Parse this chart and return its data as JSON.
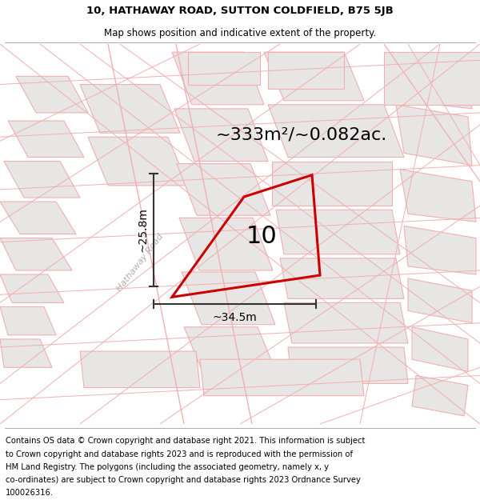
{
  "title_line1": "10, HATHAWAY ROAD, SUTTON COLDFIELD, B75 5JB",
  "title_line2": "Map shows position and indicative extent of the property.",
  "area_text": "~333m²/~0.082ac.",
  "property_number": "10",
  "width_label": "~34.5m",
  "height_label": "~25.8m",
  "road_label": "Hathaway Road",
  "footer_lines": [
    "Contains OS data © Crown copyright and database right 2021. This information is subject",
    "to Crown copyright and database rights 2023 and is reproduced with the permission of",
    "HM Land Registry. The polygons (including the associated geometry, namely x, y",
    "co-ordinates) are subject to Crown copyright and database rights 2023 Ordnance Survey",
    "100026316."
  ],
  "map_bg": "#f5f3f3",
  "parcel_fill": "#e8e5e5",
  "parcel_edge": "#f0b0b0",
  "parcel_edge_lw": 0.8,
  "road_line_color": "#f0b0b0",
  "red_border_color": "#cc0000",
  "red_border_lw": 2.2,
  "dim_line_color": "#333333",
  "title_fontsize": 9.5,
  "subtitle_fontsize": 8.5,
  "area_fontsize": 16,
  "property_num_fontsize": 22,
  "road_label_fontsize": 8,
  "dim_fontsize": 10,
  "footer_fontsize": 7.2
}
